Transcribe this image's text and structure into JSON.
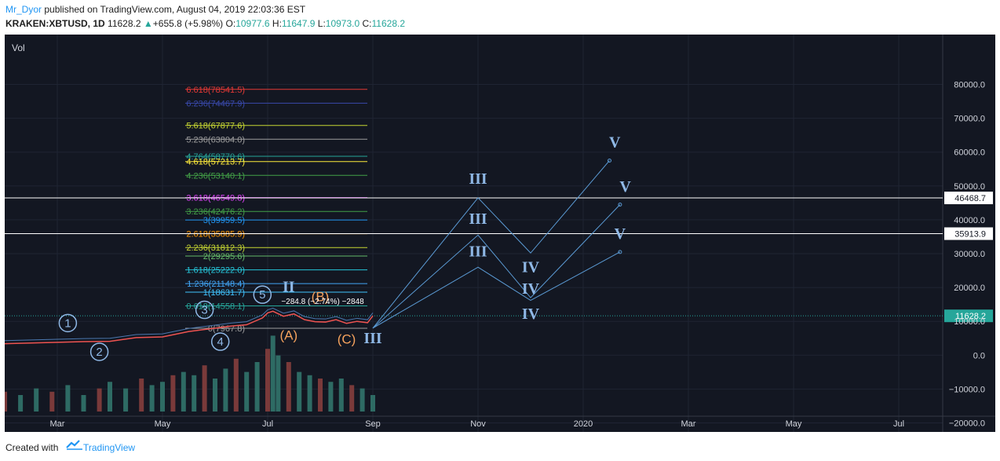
{
  "header": {
    "author": "Mr_Dyor",
    "published": "published on TradingView.com, August 04, 2019 22:03:36 EST",
    "symbol": "KRAKEN:XBTUSD, 1D",
    "last": "11628.2",
    "change": "+655.8 (+5.98%)",
    "o_label": "O:",
    "o": "10977.6",
    "h_label": "H:",
    "h": "11647.9",
    "l_label": "L:",
    "l": "10973.0",
    "c_label": "C:",
    "c": "11628.2"
  },
  "footer": {
    "created_with": "Created with",
    "brand": "TradingView"
  },
  "colors": {
    "bg": "#131722",
    "up": "#26a69a",
    "down": "#ef5350",
    "wave": "#5b9bd5",
    "abc": "#f5a25d"
  },
  "chart_data": {
    "type": "line",
    "volume_label": "Vol",
    "ylim": [
      -27000,
      87000
    ],
    "y_ticks": [
      80000,
      70000,
      60000,
      50000,
      40000,
      30000,
      20000,
      10000,
      0,
      -10000,
      -20000
    ],
    "y_tick_labels": [
      "80000.0",
      "70000.0",
      "60000.0",
      "50000.0",
      "40000.0",
      "30000.0",
      "20000.0",
      "10000.0",
      "0.0",
      "−10000.0",
      "−20000.0"
    ],
    "x_ticks": [
      "Mar",
      "May",
      "Jul",
      "Sep",
      "Nov",
      "2020",
      "Mar",
      "May",
      "Jul"
    ],
    "x_range_months": [
      0,
      21
    ],
    "x_tick_months": [
      1,
      3,
      5,
      7,
      9,
      11,
      13,
      15,
      17
    ],
    "last_price": {
      "value": 11628.2,
      "label": "11628.2"
    },
    "horizontal_levels": [
      {
        "value": 46468.7,
        "label": "46468.7"
      },
      {
        "value": 35913.9,
        "label": "35913.9"
      }
    ],
    "fib_levels": [
      {
        "ratio": "6.618",
        "value": 78541.5,
        "text": "6.618(78541.5)",
        "color": "#e53935"
      },
      {
        "ratio": "6.236",
        "value": 74467.9,
        "text": "6.236(74467.9)",
        "color": "#3949ab"
      },
      {
        "ratio": "5.618",
        "value": 67877.6,
        "text": "5.618(67877.6)",
        "color": "#c6d632"
      },
      {
        "ratio": "5.236",
        "value": 63804.0,
        "text": "5.236(63804.0)",
        "color": "#9e9e9e"
      },
      {
        "ratio": "4.764",
        "value": 58770.6,
        "text": "4.764(58770.6)",
        "color": "#26a69a"
      },
      {
        "ratio": "4.618",
        "value": 57213.7,
        "text": "4.618(57213.7)",
        "color": "#ffeb3b"
      },
      {
        "ratio": "4.236",
        "value": 53140.1,
        "text": "4.236(53140.1)",
        "color": "#43a047"
      },
      {
        "ratio": "3.618",
        "value": 46549.8,
        "text": "3.618(46549.8)",
        "color": "#e040fb"
      },
      {
        "ratio": "3.236",
        "value": 42476.2,
        "text": "3.236(42476.2)",
        "color": "#43a047"
      },
      {
        "ratio": "3",
        "value": 39959.5,
        "text": "3(39959.5)",
        "color": "#2196f3"
      },
      {
        "ratio": "2.618",
        "value": 35885.9,
        "text": "2.618(35885.9)",
        "color": "#ff9800"
      },
      {
        "ratio": "2.236",
        "value": 31812.3,
        "text": "2.236(31812.3)",
        "color": "#c6d632"
      },
      {
        "ratio": "2",
        "value": 29295.6,
        "text": "2(29295.6)",
        "color": "#66bb6a"
      },
      {
        "ratio": "1.618",
        "value": 25222.0,
        "text": "1.618(25222.0)",
        "color": "#26c6da"
      },
      {
        "ratio": "1.236",
        "value": 21148.4,
        "text": "1.236(21148.4)",
        "color": "#42a5f5"
      },
      {
        "ratio": "1",
        "value": 18631.7,
        "text": "1(18631.7)",
        "color": "#40c4ff"
      },
      {
        "ratio": "0.618",
        "value": 14558.1,
        "text": "0.618(14558.1)",
        "color": "#26a69a"
      },
      {
        "ratio": "0",
        "value": 7967.8,
        "text": "0(7967.8)",
        "color": "#9e9e9e"
      }
    ],
    "measure_label": "−284.8 (−2.74%) −2848",
    "price_series": [
      {
        "m": 0.0,
        "v": 3400
      },
      {
        "m": 0.5,
        "v": 3600
      },
      {
        "m": 1.0,
        "v": 3800
      },
      {
        "m": 1.5,
        "v": 4000
      },
      {
        "m": 2.0,
        "v": 4100
      },
      {
        "m": 2.5,
        "v": 5200
      },
      {
        "m": 3.0,
        "v": 5400
      },
      {
        "m": 3.5,
        "v": 7000
      },
      {
        "m": 4.0,
        "v": 8000
      },
      {
        "m": 4.3,
        "v": 8600
      },
      {
        "m": 4.6,
        "v": 9000
      },
      {
        "m": 4.9,
        "v": 11000
      },
      {
        "m": 5.0,
        "v": 12500
      },
      {
        "m": 5.1,
        "v": 13000
      },
      {
        "m": 5.3,
        "v": 11500
      },
      {
        "m": 5.5,
        "v": 12200
      },
      {
        "m": 5.7,
        "v": 10500
      },
      {
        "m": 5.9,
        "v": 9900
      },
      {
        "m": 6.1,
        "v": 9800
      },
      {
        "m": 6.3,
        "v": 10500
      },
      {
        "m": 6.5,
        "v": 9400
      },
      {
        "m": 6.7,
        "v": 10000
      },
      {
        "m": 6.9,
        "v": 9600
      },
      {
        "m": 7.0,
        "v": 11628
      }
    ],
    "volume": [
      {
        "m": 0.0,
        "v": 6
      },
      {
        "m": 0.3,
        "v": 5
      },
      {
        "m": 0.6,
        "v": 7
      },
      {
        "m": 0.9,
        "v": 6
      },
      {
        "m": 1.2,
        "v": 8
      },
      {
        "m": 1.5,
        "v": 5
      },
      {
        "m": 1.8,
        "v": 7
      },
      {
        "m": 2.0,
        "v": 9
      },
      {
        "m": 2.3,
        "v": 7
      },
      {
        "m": 2.6,
        "v": 10
      },
      {
        "m": 2.8,
        "v": 8
      },
      {
        "m": 3.0,
        "v": 9
      },
      {
        "m": 3.2,
        "v": 11
      },
      {
        "m": 3.4,
        "v": 12
      },
      {
        "m": 3.6,
        "v": 11
      },
      {
        "m": 3.8,
        "v": 14
      },
      {
        "m": 4.0,
        "v": 10
      },
      {
        "m": 4.2,
        "v": 13
      },
      {
        "m": 4.4,
        "v": 16
      },
      {
        "m": 4.6,
        "v": 12
      },
      {
        "m": 4.8,
        "v": 15
      },
      {
        "m": 5.0,
        "v": 19
      },
      {
        "m": 5.1,
        "v": 23
      },
      {
        "m": 5.2,
        "v": 17
      },
      {
        "m": 5.4,
        "v": 15
      },
      {
        "m": 5.6,
        "v": 12
      },
      {
        "m": 5.8,
        "v": 11
      },
      {
        "m": 6.0,
        "v": 10
      },
      {
        "m": 6.2,
        "v": 9
      },
      {
        "m": 6.4,
        "v": 10
      },
      {
        "m": 6.6,
        "v": 8
      },
      {
        "m": 6.8,
        "v": 7
      },
      {
        "m": 7.0,
        "v": 5
      }
    ],
    "wave_paths": [
      {
        "name": "path-1",
        "points": [
          {
            "m": 7.0,
            "v": 8000
          },
          {
            "m": 9.0,
            "v": 46500
          },
          {
            "m": 10.0,
            "v": 30200
          },
          {
            "m": 11.5,
            "v": 57500
          }
        ]
      },
      {
        "name": "path-2",
        "points": [
          {
            "m": 7.0,
            "v": 8000
          },
          {
            "m": 9.0,
            "v": 35500
          },
          {
            "m": 10.0,
            "v": 17000
          },
          {
            "m": 11.7,
            "v": 44500
          }
        ]
      },
      {
        "name": "path-3",
        "points": [
          {
            "m": 7.0,
            "v": 8000
          },
          {
            "m": 9.0,
            "v": 26000
          },
          {
            "m": 10.0,
            "v": 16200
          },
          {
            "m": 11.7,
            "v": 30500
          }
        ]
      }
    ],
    "wave_labels": [
      {
        "text": "III",
        "m": 9.0,
        "v": 50700
      },
      {
        "text": "III",
        "m": 9.0,
        "v": 38800
      },
      {
        "text": "III",
        "m": 9.0,
        "v": 29200
      },
      {
        "text": "IV",
        "m": 10.0,
        "v": 24500
      },
      {
        "text": "IV",
        "m": 10.0,
        "v": 18200
      },
      {
        "text": "IV",
        "m": 10.0,
        "v": 10800
      },
      {
        "text": "V",
        "m": 11.6,
        "v": 61400
      },
      {
        "text": "V",
        "m": 11.8,
        "v": 48300
      },
      {
        "text": "V",
        "m": 11.7,
        "v": 34400
      },
      {
        "text": "II",
        "m": 5.4,
        "v": 18700
      },
      {
        "text": "III",
        "m": 7.0,
        "v": 3500
      }
    ],
    "circled_labels": [
      {
        "text": "1",
        "m": 1.2,
        "v": 9500
      },
      {
        "text": "2",
        "m": 1.8,
        "v": 1000
      },
      {
        "text": "3",
        "m": 3.8,
        "v": 13400
      },
      {
        "text": "4",
        "m": 4.1,
        "v": 4000
      },
      {
        "text": "5",
        "m": 4.9,
        "v": 17900
      }
    ],
    "abc_labels": [
      {
        "text": "(A)",
        "m": 5.4,
        "v": 4600
      },
      {
        "text": "(B)",
        "m": 6.0,
        "v": 16000
      },
      {
        "text": "(C)",
        "m": 6.5,
        "v": 3400
      }
    ]
  }
}
